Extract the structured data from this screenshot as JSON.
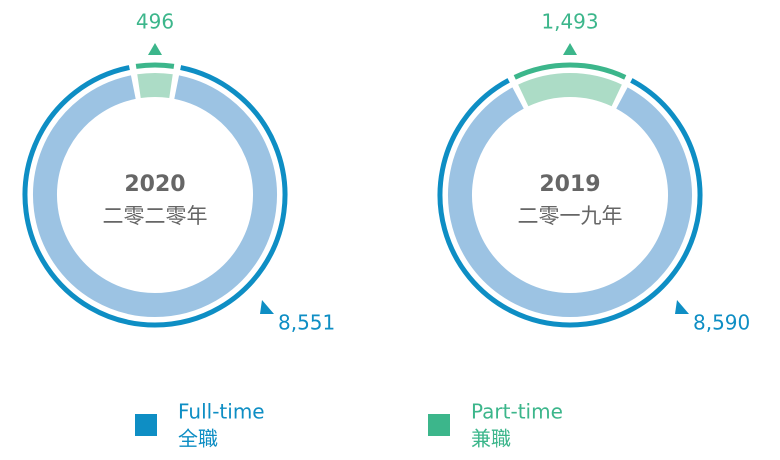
{
  "chart_data": [
    {
      "type": "donut",
      "title": "2020",
      "subtitle": "二零二零年",
      "values": [
        8551,
        496
      ],
      "value_labels": [
        "8,551",
        "496"
      ],
      "colors": [
        "#0e8ec4",
        "#3cb68b"
      ],
      "fill_colors": [
        "#9cc3e3",
        "#acdcc6"
      ]
    },
    {
      "type": "donut",
      "title": "2019",
      "subtitle": "二零一九年",
      "values": [
        8590,
        1493
      ],
      "value_labels": [
        "8,590",
        "1,493"
      ],
      "colors": [
        "#0e8ec4",
        "#3cb68b"
      ],
      "fill_colors": [
        "#9cc3e3",
        "#acdcc6"
      ]
    }
  ],
  "legend": [
    {
      "label": "Full-time",
      "sublabel": "全職",
      "color": "#0e8ec4"
    },
    {
      "label": "Part-time",
      "sublabel": "兼職",
      "color": "#3cb68b"
    }
  ]
}
